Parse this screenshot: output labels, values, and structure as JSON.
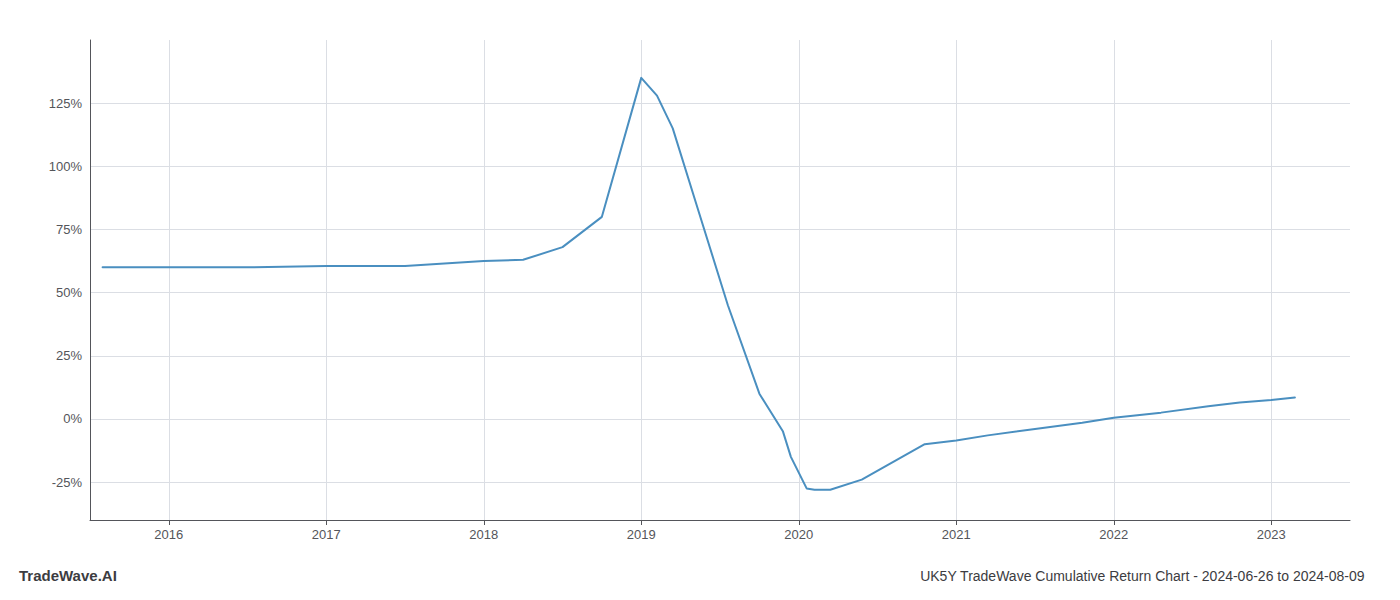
{
  "chart_data": {
    "type": "line",
    "title": "UK5Y TradeWave Cumulative Return Chart - 2024-06-26 to 2024-08-09",
    "watermark": "TradeWave.AI",
    "color": "#4a8fc0",
    "x": [
      2015.58,
      2016.0,
      2016.5,
      2017.0,
      2017.5,
      2018.0,
      2018.25,
      2018.5,
      2018.75,
      2019.0,
      2019.1,
      2019.2,
      2019.35,
      2019.55,
      2019.75,
      2019.9,
      2019.95,
      2020.05,
      2020.1,
      2020.2,
      2020.4,
      2020.6,
      2020.8,
      2021.0,
      2021.2,
      2021.5,
      2021.8,
      2022.0,
      2022.3,
      2022.6,
      2022.8,
      2023.0,
      2023.15
    ],
    "values": [
      60.0,
      60.0,
      60.0,
      60.5,
      60.5,
      62.5,
      63.0,
      68.0,
      80.0,
      135.0,
      128.0,
      115.0,
      85.0,
      45.0,
      10.0,
      -5.0,
      -15.0,
      -27.5,
      -28.0,
      -28.0,
      -24.0,
      -17.0,
      -10.0,
      -8.5,
      -6.5,
      -4.0,
      -1.5,
      0.5,
      2.5,
      5.0,
      6.5,
      7.5,
      8.5
    ],
    "xlim": [
      2015.5,
      2023.5
    ],
    "ylim": [
      -40,
      150
    ],
    "xticks": [
      2016,
      2017,
      2018,
      2019,
      2020,
      2021,
      2022,
      2023
    ],
    "yticks": [
      {
        "value": -25,
        "label": "-25%"
      },
      {
        "value": 0,
        "label": "0%"
      },
      {
        "value": 25,
        "label": "25%"
      },
      {
        "value": 50,
        "label": "50%"
      },
      {
        "value": 75,
        "label": "75%"
      },
      {
        "value": 100,
        "label": "100%"
      },
      {
        "value": 125,
        "label": "125%"
      }
    ],
    "grid": true
  }
}
